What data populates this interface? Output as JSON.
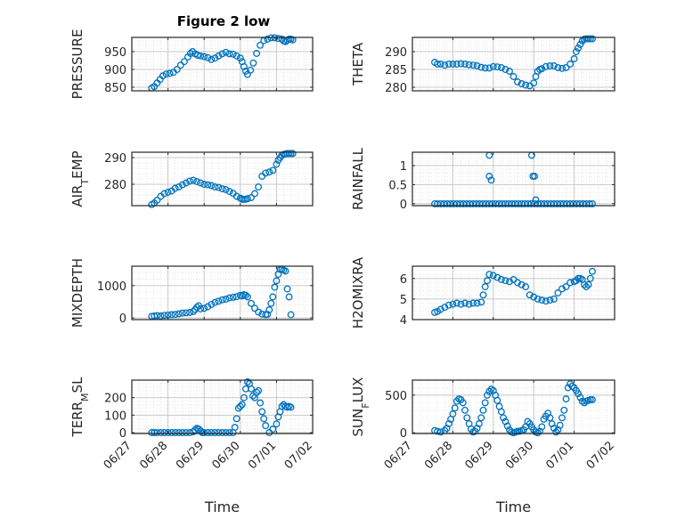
{
  "figure_title": "Figure 2 low",
  "colors": {
    "marker": "#0072BD",
    "axes": "#262626",
    "grid": "#c8c8c8"
  },
  "chart_data": [
    {
      "type": "scatter",
      "id": "pressure",
      "title": "Figure 2 low",
      "ylabel": "PRESSURE",
      "xlabel": "",
      "ylim": [
        840,
        990
      ],
      "yticks": [
        850,
        900,
        950
      ],
      "ytick_labels": [
        "850",
        "900",
        "950"
      ],
      "xlim": [
        0,
        5
      ],
      "xticks": [
        0,
        1,
        2,
        3,
        4,
        5
      ],
      "xtick_labels": [],
      "series": [
        {
          "x": [
            0.55,
            0.62,
            0.7,
            0.78,
            0.86,
            0.95,
            1.05,
            1.15,
            1.25,
            1.35,
            1.45,
            1.55,
            1.62,
            1.68,
            1.75,
            1.82,
            1.9,
            2.0,
            2.1,
            2.2,
            2.3,
            2.4,
            2.5,
            2.6,
            2.7,
            2.8,
            2.9,
            3.0,
            3.05,
            3.1,
            3.15,
            3.2,
            3.28,
            3.36,
            3.45,
            3.55,
            3.65,
            3.75,
            3.85,
            3.95,
            4.05,
            4.15,
            4.2,
            4.25,
            4.3,
            4.35,
            4.4,
            4.45
          ],
          "y": [
            848,
            852,
            862,
            872,
            882,
            887,
            889,
            892,
            900,
            912,
            922,
            935,
            945,
            950,
            944,
            940,
            938,
            936,
            933,
            928,
            932,
            938,
            944,
            948,
            944,
            943,
            938,
            932,
            922,
            908,
            895,
            886,
            898,
            918,
            945,
            968,
            981,
            985,
            989,
            989,
            987,
            985,
            980,
            978,
            982,
            985,
            985,
            983
          ]
        }
      ]
    },
    {
      "type": "scatter",
      "id": "theta",
      "title": "",
      "ylabel": "THETA",
      "xlabel": "",
      "ylim": [
        279,
        294
      ],
      "yticks": [
        280,
        285,
        290
      ],
      "ytick_labels": [
        "280",
        "285",
        "290"
      ],
      "xlim": [
        0,
        5
      ],
      "xticks": [
        0,
        1,
        2,
        3,
        4,
        5
      ],
      "xtick_labels": [],
      "series": [
        {
          "x": [
            0.55,
            0.62,
            0.7,
            0.8,
            0.9,
            1.0,
            1.1,
            1.2,
            1.3,
            1.4,
            1.5,
            1.6,
            1.7,
            1.8,
            1.9,
            2.0,
            2.1,
            2.2,
            2.3,
            2.4,
            2.5,
            2.6,
            2.7,
            2.8,
            2.9,
            3.0,
            3.05,
            3.1,
            3.15,
            3.2,
            3.3,
            3.4,
            3.5,
            3.6,
            3.7,
            3.8,
            3.9,
            4.0,
            4.05,
            4.1,
            4.15,
            4.2,
            4.25,
            4.3,
            4.35,
            4.4,
            4.45
          ],
          "y": [
            287,
            286.5,
            286.5,
            286.2,
            286.5,
            286.5,
            286.5,
            286.6,
            286.5,
            286.3,
            286.2,
            286.0,
            285.6,
            285.4,
            285.4,
            285.8,
            285.7,
            285.5,
            285.0,
            284.5,
            283.0,
            281.5,
            281.0,
            280.6,
            280.4,
            281.2,
            283.0,
            284.5,
            285.0,
            285.2,
            285.8,
            286.0,
            286.0,
            285.5,
            285.3,
            285.5,
            286.5,
            288.0,
            290.0,
            291.0,
            292.0,
            293.0,
            293.5,
            293.6,
            293.6,
            293.6,
            293.6
          ]
        }
      ]
    },
    {
      "type": "scatter",
      "id": "air_temp",
      "title": "",
      "ylabel": "AIR_TEMP",
      "xlabel": "",
      "ylim": [
        272,
        292
      ],
      "yticks": [
        280,
        290
      ],
      "ytick_labels": [
        "280",
        "290"
      ],
      "xlim": [
        0,
        5
      ],
      "xticks": [
        0,
        1,
        2,
        3,
        4,
        5
      ],
      "xtick_labels": [],
      "series": [
        {
          "x": [
            0.55,
            0.62,
            0.7,
            0.8,
            0.9,
            1.0,
            1.1,
            1.2,
            1.3,
            1.4,
            1.5,
            1.6,
            1.7,
            1.8,
            1.9,
            2.0,
            2.1,
            2.2,
            2.3,
            2.4,
            2.5,
            2.6,
            2.7,
            2.8,
            2.9,
            3.0,
            3.05,
            3.1,
            3.15,
            3.2,
            3.3,
            3.4,
            3.5,
            3.6,
            3.7,
            3.8,
            3.9,
            4.0,
            4.05,
            4.1,
            4.15,
            4.2,
            4.25,
            4.3,
            4.35,
            4.4,
            4.45
          ],
          "y": [
            272.4,
            273.0,
            274.0,
            275.5,
            276.5,
            277.0,
            277.5,
            278.5,
            279.0,
            279.8,
            280.5,
            281.2,
            281.5,
            281.0,
            280.5,
            280.0,
            279.8,
            279.5,
            279.0,
            278.8,
            278.3,
            278.0,
            277.3,
            276.6,
            275.5,
            274.8,
            274.4,
            274.3,
            274.4,
            274.6,
            275.0,
            276.5,
            279.0,
            283.0,
            284.2,
            284.6,
            285.2,
            287.5,
            289.0,
            290.0,
            290.8,
            291.2,
            291.4,
            291.5,
            291.5,
            291.5,
            291.5
          ]
        }
      ]
    },
    {
      "type": "scatter",
      "id": "rainfall",
      "title": "",
      "ylabel": "RAINFALL",
      "xlabel": "",
      "ylim": [
        -0.05,
        1.35
      ],
      "yticks": [
        0,
        0.5,
        1
      ],
      "ytick_labels": [
        "0",
        "0.5",
        "1"
      ],
      "xlim": [
        0,
        5
      ],
      "xticks": [
        0,
        1,
        2,
        3,
        4,
        5
      ],
      "xtick_labels": [],
      "series": [
        {
          "x": [
            0.55,
            0.62,
            0.7,
            0.78,
            0.86,
            0.94,
            1.02,
            1.1,
            1.18,
            1.26,
            1.34,
            1.42,
            1.5,
            1.58,
            1.66,
            1.74,
            1.82,
            1.9,
            1.98,
            2.06,
            2.14,
            2.22,
            2.3,
            2.38,
            2.46,
            2.54,
            2.62,
            2.7,
            2.78,
            2.86,
            2.94,
            3.02,
            3.1,
            3.18,
            3.26,
            3.34,
            3.42,
            3.5,
            3.58,
            3.66,
            3.74,
            3.82,
            3.9,
            3.98,
            4.06,
            4.14,
            4.22,
            4.3,
            4.38,
            4.45,
            1.9,
            1.95,
            1.9,
            2.95,
            2.98,
            3.02,
            3.05
          ],
          "y": [
            0,
            0,
            0,
            0,
            0,
            0,
            0,
            0,
            0,
            0,
            0,
            0,
            0,
            0,
            0,
            0,
            0,
            0,
            0,
            0,
            0,
            0,
            0,
            0,
            0,
            0,
            0,
            0,
            0,
            0,
            0,
            0,
            0,
            0,
            0,
            0,
            0,
            0,
            0,
            0,
            0,
            0,
            0,
            0,
            0,
            0,
            0,
            0,
            0,
            0,
            1.27,
            0.62,
            0.72,
            1.27,
            0.72,
            0.72,
            0.1
          ]
        }
      ]
    },
    {
      "type": "scatter",
      "id": "mixdepth",
      "title": "",
      "ylabel": "MIXDEPTH",
      "xlabel": "",
      "ylim": [
        -50,
        1600
      ],
      "yticks": [
        0,
        1000
      ],
      "ytick_labels": [
        "0",
        "1000"
      ],
      "xlim": [
        0,
        5
      ],
      "xticks": [
        0,
        1,
        2,
        3,
        4,
        5
      ],
      "xtick_labels": [],
      "series": [
        {
          "x": [
            0.55,
            0.62,
            0.7,
            0.8,
            0.9,
            1.0,
            1.1,
            1.2,
            1.3,
            1.4,
            1.5,
            1.6,
            1.7,
            1.75,
            1.8,
            1.85,
            1.9,
            2.0,
            2.1,
            2.2,
            2.3,
            2.4,
            2.5,
            2.6,
            2.7,
            2.8,
            2.9,
            3.0,
            3.05,
            3.1,
            3.15,
            3.2,
            3.3,
            3.4,
            3.5,
            3.6,
            3.7,
            3.75,
            3.8,
            3.85,
            3.9,
            3.95,
            4.0,
            4.05,
            4.1,
            4.15,
            4.2,
            4.25,
            4.3,
            4.35,
            4.4
          ],
          "y": [
            50,
            60,
            70,
            60,
            80,
            90,
            100,
            110,
            130,
            150,
            160,
            170,
            200,
            260,
            330,
            380,
            280,
            300,
            350,
            420,
            480,
            520,
            560,
            580,
            620,
            640,
            660,
            700,
            680,
            720,
            700,
            650,
            450,
            300,
            180,
            120,
            100,
            110,
            250,
            450,
            650,
            950,
            1150,
            1350,
            1500,
            1500,
            1480,
            1450,
            900,
            650,
            100
          ]
        }
      ]
    },
    {
      "type": "scatter",
      "id": "h2omixra",
      "title": "",
      "ylabel": "H2OMIXRA",
      "xlabel": "",
      "ylim": [
        4.0,
        6.6
      ],
      "yticks": [
        4,
        5,
        6
      ],
      "ytick_labels": [
        "4",
        "5",
        "6"
      ],
      "xlim": [
        0,
        5
      ],
      "xticks": [
        0,
        1,
        2,
        3,
        4,
        5
      ],
      "xtick_labels": [],
      "series": [
        {
          "x": [
            0.55,
            0.62,
            0.7,
            0.8,
            0.9,
            1.0,
            1.1,
            1.2,
            1.3,
            1.4,
            1.5,
            1.6,
            1.7,
            1.75,
            1.8,
            1.85,
            1.9,
            2.0,
            2.1,
            2.2,
            2.3,
            2.4,
            2.5,
            2.6,
            2.7,
            2.8,
            2.9,
            3.0,
            3.1,
            3.2,
            3.3,
            3.4,
            3.5,
            3.6,
            3.7,
            3.8,
            3.9,
            4.0,
            4.05,
            4.1,
            4.15,
            4.2,
            4.25,
            4.3,
            4.35,
            4.4,
            4.45
          ],
          "y": [
            4.35,
            4.4,
            4.5,
            4.6,
            4.7,
            4.75,
            4.8,
            4.75,
            4.8,
            4.75,
            4.8,
            4.8,
            4.85,
            5.2,
            5.6,
            5.9,
            6.2,
            6.15,
            6.05,
            5.95,
            5.9,
            5.85,
            5.95,
            5.8,
            5.7,
            5.6,
            5.2,
            5.1,
            5.0,
            4.95,
            4.9,
            4.95,
            5.0,
            5.3,
            5.5,
            5.6,
            5.8,
            5.85,
            5.9,
            6.0,
            6.0,
            5.95,
            5.7,
            5.6,
            5.7,
            6.0,
            6.35
          ]
        }
      ]
    },
    {
      "type": "scatter",
      "id": "terr_msl",
      "title": "",
      "ylabel": "TERR_MSL",
      "xlabel": "Time",
      "ylim": [
        -5,
        300
      ],
      "yticks": [
        0,
        100,
        200
      ],
      "ytick_labels": [
        "0",
        "100",
        "200"
      ],
      "xlim": [
        0,
        5
      ],
      "xticks": [
        0,
        1,
        2,
        3,
        4,
        5
      ],
      "xtick_labels": [
        "06/27",
        "06/28",
        "06/29",
        "06/30",
        "07/01",
        "07/02"
      ],
      "series": [
        {
          "x": [
            0.55,
            0.62,
            0.7,
            0.8,
            0.9,
            1.0,
            1.1,
            1.2,
            1.3,
            1.4,
            1.5,
            1.6,
            1.7,
            1.75,
            1.8,
            1.85,
            1.9,
            1.95,
            2.0,
            2.1,
            2.2,
            2.3,
            2.4,
            2.5,
            2.6,
            2.7,
            2.8,
            2.85,
            2.9,
            2.95,
            3.0,
            3.05,
            3.1,
            3.15,
            3.2,
            3.25,
            3.3,
            3.35,
            3.4,
            3.45,
            3.5,
            3.55,
            3.6,
            3.65,
            3.7,
            3.8,
            3.9,
            4.0,
            4.05,
            4.1,
            4.15,
            4.2,
            4.25,
            4.3,
            4.35,
            4.4
          ],
          "y": [
            0,
            0,
            0,
            0,
            0,
            0,
            0,
            0,
            0,
            0,
            0,
            0,
            5,
            15,
            25,
            20,
            10,
            0,
            0,
            0,
            0,
            0,
            0,
            0,
            0,
            0,
            0,
            30,
            80,
            140,
            150,
            160,
            200,
            250,
            290,
            280,
            250,
            210,
            200,
            230,
            240,
            170,
            120,
            80,
            40,
            0,
            20,
            50,
            90,
            120,
            150,
            160,
            150,
            145,
            150,
            145
          ]
        }
      ]
    },
    {
      "type": "scatter",
      "id": "sun_flux",
      "title": "",
      "ylabel": "SUN_FLUX",
      "xlabel": "Time",
      "ylim": [
        -10,
        700
      ],
      "yticks": [
        0,
        500
      ],
      "ytick_labels": [
        "0",
        "500"
      ],
      "xlim": [
        0,
        5
      ],
      "xticks": [
        0,
        1,
        2,
        3,
        4,
        5
      ],
      "xtick_labels": [
        "06/27",
        "06/28",
        "06/29",
        "06/30",
        "07/01",
        "07/02"
      ],
      "series": [
        {
          "x": [
            0.55,
            0.62,
            0.7,
            0.8,
            0.85,
            0.9,
            0.95,
            1.0,
            1.05,
            1.1,
            1.15,
            1.2,
            1.25,
            1.3,
            1.35,
            1.4,
            1.45,
            1.5,
            1.55,
            1.6,
            1.65,
            1.7,
            1.75,
            1.8,
            1.85,
            1.9,
            1.95,
            2.0,
            2.05,
            2.1,
            2.15,
            2.2,
            2.25,
            2.3,
            2.35,
            2.4,
            2.45,
            2.5,
            2.55,
            2.6,
            2.65,
            2.7,
            2.75,
            2.8,
            2.85,
            2.9,
            2.95,
            3.0,
            3.05,
            3.1,
            3.15,
            3.2,
            3.25,
            3.3,
            3.35,
            3.4,
            3.45,
            3.5,
            3.55,
            3.6,
            3.65,
            3.7,
            3.75,
            3.8,
            3.85,
            3.9,
            3.95,
            4.0,
            4.05,
            4.1,
            4.15,
            4.2,
            4.25,
            4.3,
            4.35,
            4.4,
            4.45
          ],
          "y": [
            30,
            20,
            10,
            30,
            60,
            120,
            180,
            250,
            330,
            420,
            450,
            440,
            400,
            300,
            200,
            120,
            50,
            10,
            20,
            60,
            120,
            200,
            300,
            400,
            500,
            550,
            580,
            560,
            500,
            430,
            350,
            280,
            200,
            150,
            90,
            40,
            10,
            0,
            10,
            20,
            20,
            30,
            40,
            80,
            150,
            120,
            80,
            40,
            10,
            0,
            20,
            80,
            180,
            220,
            260,
            200,
            120,
            60,
            10,
            40,
            100,
            200,
            300,
            450,
            600,
            650,
            620,
            600,
            560,
            520,
            470,
            420,
            400,
            420,
            430,
            440,
            440
          ]
        }
      ]
    }
  ]
}
